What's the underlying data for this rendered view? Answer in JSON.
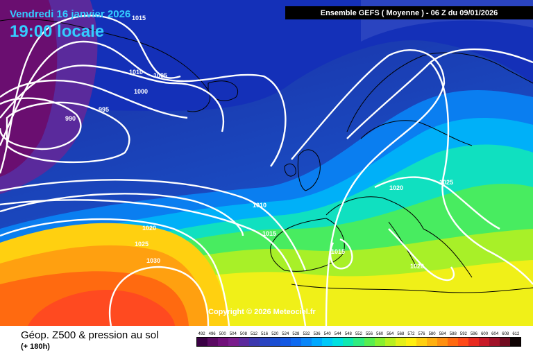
{
  "header": {
    "date": "Vendredi 16 janvier 2026",
    "time": "19:00 locale",
    "run": "Ensemble GEFS  ( Moyenne )  -  06 Z du 09/01/2026"
  },
  "copyright": "Copyright © 2026 Meteociel.fr",
  "footer": {
    "product": "Géop. Z500 & pression au sol",
    "horizon": "(+ 180h)"
  },
  "legend": {
    "values": [
      "492",
      "496",
      "500",
      "504",
      "508",
      "512",
      "516",
      "520",
      "524",
      "528",
      "532",
      "536",
      "540",
      "544",
      "548",
      "552",
      "556",
      "560",
      "564",
      "568",
      "572",
      "576",
      "580",
      "584",
      "588",
      "592",
      "596",
      "600",
      "604",
      "608",
      "612"
    ],
    "colors": [
      "#3a0044",
      "#5a0a62",
      "#70107a",
      "#7a1c8c",
      "#5c2a9c",
      "#3c38ae",
      "#2a44c0",
      "#1a4ed2",
      "#1458e2",
      "#0f6af0",
      "#0a86f8",
      "#00a8ff",
      "#00c8f8",
      "#00e0e0",
      "#10e8b0",
      "#30ec80",
      "#58ee50",
      "#88f030",
      "#b8f020",
      "#e4f018",
      "#fff010",
      "#ffd010",
      "#ffb010",
      "#ff9010",
      "#ff6a10",
      "#ff4a18",
      "#e82a20",
      "#c81a28",
      "#a01228",
      "#700c20",
      "#100404"
    ]
  },
  "isobars": {
    "labels": [
      "1015",
      "1010",
      "1005",
      "1000",
      "995",
      "990",
      "1020",
      "1025",
      "1030",
      "1010",
      "1015",
      "1015",
      "1020",
      "1025",
      "1020"
    ]
  },
  "colors": {
    "contour": "#ffffff",
    "coast": "#000000"
  }
}
